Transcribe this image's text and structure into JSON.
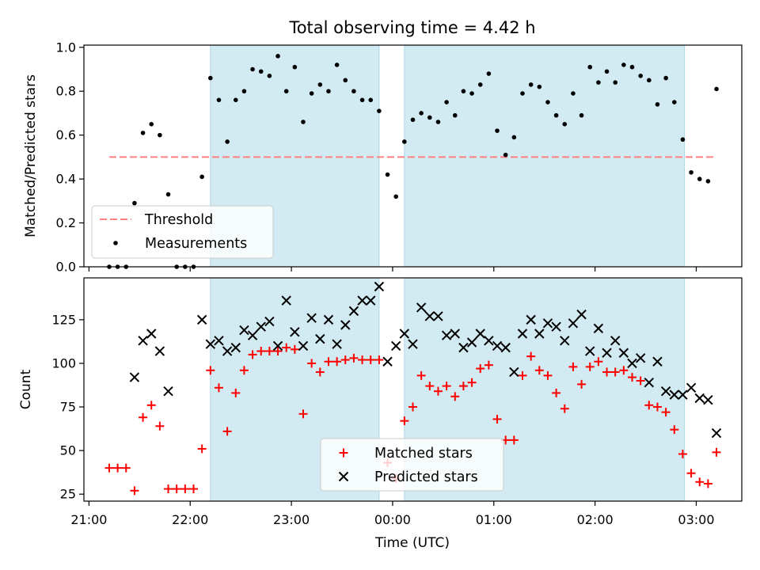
{
  "chart_data": {
    "title": "Total observing time = 4.42 h",
    "xlabel": "Time (UTC)",
    "x_ticks": [
      "21:00",
      "22:00",
      "23:00",
      "00:00",
      "01:00",
      "02:00",
      "03:00"
    ],
    "x_tick_hours": [
      0,
      1,
      2,
      3,
      4,
      5,
      6
    ],
    "x_origin": "21:00",
    "xlim": [
      -0.05,
      6.45
    ],
    "shaded_intervals": [
      [
        "22:12",
        "23:52"
      ],
      [
        "00:07",
        "02:53"
      ]
    ],
    "colors": {
      "shade": "#add8e6",
      "threshold": "#ff8080",
      "measurements": "#000000",
      "matched": "#ff0000",
      "predicted": "#000000"
    },
    "panels": [
      {
        "type": "scatter",
        "ylabel": "Matched/Predicted stars",
        "ylim": [
          0,
          1.01
        ],
        "y_ticks": [
          0.0,
          0.2,
          0.4,
          0.6,
          0.8,
          1.0
        ],
        "y_tick_labels": [
          "0.0",
          "0.2",
          "0.4",
          "0.6",
          "0.8",
          "1.0"
        ],
        "threshold": {
          "name": "Threshold",
          "value": 0.5,
          "x_range": [
            "21:12",
            "03:12"
          ]
        },
        "legend": {
          "placement": "lower-left",
          "entries": [
            "Threshold",
            "Measurements"
          ]
        },
        "series": [
          {
            "name": "Measurements",
            "marker": "dot",
            "points": [
              [
                "21:12",
                0.0
              ],
              [
                "21:17",
                0.0
              ],
              [
                "21:22",
                0.0
              ],
              [
                "21:27",
                0.29
              ],
              [
                "21:32",
                0.61
              ],
              [
                "21:37",
                0.65
              ],
              [
                "21:42",
                0.6
              ],
              [
                "21:47",
                0.33
              ],
              [
                "21:52",
                0.0
              ],
              [
                "21:57",
                0.0
              ],
              [
                "22:02",
                0.0
              ],
              [
                "22:07",
                0.41
              ],
              [
                "22:12",
                0.86
              ],
              [
                "22:17",
                0.76
              ],
              [
                "22:22",
                0.57
              ],
              [
                "22:27",
                0.76
              ],
              [
                "22:32",
                0.8
              ],
              [
                "22:37",
                0.9
              ],
              [
                "22:42",
                0.89
              ],
              [
                "22:47",
                0.87
              ],
              [
                "22:52",
                0.96
              ],
              [
                "22:57",
                0.8
              ],
              [
                "23:02",
                0.91
              ],
              [
                "23:07",
                0.66
              ],
              [
                "23:12",
                0.79
              ],
              [
                "23:17",
                0.83
              ],
              [
                "23:22",
                0.8
              ],
              [
                "23:27",
                0.92
              ],
              [
                "23:32",
                0.85
              ],
              [
                "23:37",
                0.8
              ],
              [
                "23:42",
                0.76
              ],
              [
                "23:47",
                0.76
              ],
              [
                "23:52",
                0.71
              ],
              [
                "23:57",
                0.42
              ],
              [
                "00:02",
                0.32
              ],
              [
                "00:07",
                0.57
              ],
              [
                "00:12",
                0.67
              ],
              [
                "00:17",
                0.7
              ],
              [
                "00:22",
                0.68
              ],
              [
                "00:27",
                0.66
              ],
              [
                "00:32",
                0.75
              ],
              [
                "00:37",
                0.69
              ],
              [
                "00:42",
                0.8
              ],
              [
                "00:47",
                0.79
              ],
              [
                "00:52",
                0.83
              ],
              [
                "00:57",
                0.88
              ],
              [
                "01:02",
                0.62
              ],
              [
                "01:07",
                0.51
              ],
              [
                "01:12",
                0.59
              ],
              [
                "01:17",
                0.79
              ],
              [
                "01:22",
                0.83
              ],
              [
                "01:27",
                0.82
              ],
              [
                "01:32",
                0.75
              ],
              [
                "01:37",
                0.69
              ],
              [
                "01:42",
                0.65
              ],
              [
                "01:47",
                0.79
              ],
              [
                "01:52",
                0.69
              ],
              [
                "01:57",
                0.91
              ],
              [
                "02:02",
                0.84
              ],
              [
                "02:07",
                0.89
              ],
              [
                "02:12",
                0.84
              ],
              [
                "02:17",
                0.92
              ],
              [
                "02:22",
                0.91
              ],
              [
                "02:27",
                0.87
              ],
              [
                "02:32",
                0.85
              ],
              [
                "02:37",
                0.74
              ],
              [
                "02:42",
                0.86
              ],
              [
                "02:47",
                0.75
              ],
              [
                "02:52",
                0.58
              ],
              [
                "02:57",
                0.43
              ],
              [
                "03:02",
                0.4
              ],
              [
                "03:07",
                0.39
              ],
              [
                "03:12",
                0.81
              ]
            ]
          }
        ]
      },
      {
        "type": "scatter",
        "ylabel": "Count",
        "ylim": [
          21,
          149
        ],
        "y_ticks": [
          25,
          50,
          75,
          100,
          125
        ],
        "y_tick_labels": [
          "25",
          "50",
          "75",
          "100",
          "125"
        ],
        "legend": {
          "placement": "lower-center",
          "entries": [
            "Matched stars",
            "Predicted stars"
          ]
        },
        "series": [
          {
            "name": "Matched stars",
            "marker": "plus",
            "points": [
              [
                "21:12",
                40
              ],
              [
                "21:17",
                40
              ],
              [
                "21:22",
                40
              ],
              [
                "21:27",
                27
              ],
              [
                "21:32",
                69
              ],
              [
                "21:37",
                76
              ],
              [
                "21:42",
                64
              ],
              [
                "21:47",
                28
              ],
              [
                "21:52",
                28
              ],
              [
                "21:57",
                28
              ],
              [
                "22:02",
                28
              ],
              [
                "22:07",
                51
              ],
              [
                "22:12",
                96
              ],
              [
                "22:17",
                86
              ],
              [
                "22:22",
                61
              ],
              [
                "22:27",
                83
              ],
              [
                "22:32",
                96
              ],
              [
                "22:37",
                105
              ],
              [
                "22:42",
                107
              ],
              [
                "22:47",
                107
              ],
              [
                "22:52",
                107
              ],
              [
                "22:57",
                109
              ],
              [
                "23:02",
                108
              ],
              [
                "23:07",
                71
              ],
              [
                "23:12",
                100
              ],
              [
                "23:17",
                95
              ],
              [
                "23:22",
                101
              ],
              [
                "23:27",
                101
              ],
              [
                "23:32",
                102
              ],
              [
                "23:37",
                103
              ],
              [
                "23:42",
                102
              ],
              [
                "23:47",
                102
              ],
              [
                "23:52",
                102
              ],
              [
                "23:57",
                43
              ],
              [
                "00:02",
                34
              ],
              [
                "00:07",
                67
              ],
              [
                "00:12",
                75
              ],
              [
                "00:17",
                93
              ],
              [
                "00:22",
                87
              ],
              [
                "00:27",
                84
              ],
              [
                "00:32",
                87
              ],
              [
                "00:37",
                81
              ],
              [
                "00:42",
                87
              ],
              [
                "00:47",
                89
              ],
              [
                "00:52",
                97
              ],
              [
                "00:57",
                99
              ],
              [
                "01:02",
                68
              ],
              [
                "01:07",
                56
              ],
              [
                "01:12",
                56
              ],
              [
                "01:17",
                93
              ],
              [
                "01:22",
                104
              ],
              [
                "01:27",
                96
              ],
              [
                "01:32",
                93
              ],
              [
                "01:37",
                83
              ],
              [
                "01:42",
                74
              ],
              [
                "01:47",
                98
              ],
              [
                "01:52",
                88
              ],
              [
                "01:57",
                98
              ],
              [
                "02:02",
                101
              ],
              [
                "02:07",
                95
              ],
              [
                "02:12",
                95
              ],
              [
                "02:17",
                96
              ],
              [
                "02:22",
                92
              ],
              [
                "02:27",
                90
              ],
              [
                "02:32",
                76
              ],
              [
                "02:37",
                75
              ],
              [
                "02:42",
                72
              ],
              [
                "02:47",
                62
              ],
              [
                "02:52",
                48
              ],
              [
                "02:57",
                37
              ],
              [
                "03:02",
                32
              ],
              [
                "03:07",
                31
              ],
              [
                "03:12",
                49
              ]
            ]
          },
          {
            "name": "Predicted stars",
            "marker": "x",
            "points": [
              [
                "21:27",
                92
              ],
              [
                "21:32",
                113
              ],
              [
                "21:37",
                117
              ],
              [
                "21:42",
                107
              ],
              [
                "21:47",
                84
              ],
              [
                "22:07",
                125
              ],
              [
                "22:12",
                111
              ],
              [
                "22:17",
                113
              ],
              [
                "22:22",
                107
              ],
              [
                "22:27",
                109
              ],
              [
                "22:32",
                119
              ],
              [
                "22:37",
                116
              ],
              [
                "22:42",
                121
              ],
              [
                "22:47",
                124
              ],
              [
                "22:52",
                110
              ],
              [
                "22:57",
                136
              ],
              [
                "23:02",
                118
              ],
              [
                "23:07",
                110
              ],
              [
                "23:12",
                126
              ],
              [
                "23:17",
                114
              ],
              [
                "23:22",
                125
              ],
              [
                "23:27",
                111
              ],
              [
                "23:32",
                122
              ],
              [
                "23:37",
                130
              ],
              [
                "23:42",
                136
              ],
              [
                "23:47",
                136
              ],
              [
                "23:52",
                144
              ],
              [
                "23:57",
                101
              ],
              [
                "00:02",
                110
              ],
              [
                "00:07",
                117
              ],
              [
                "00:12",
                111
              ],
              [
                "00:17",
                132
              ],
              [
                "00:22",
                127
              ],
              [
                "00:27",
                127
              ],
              [
                "00:32",
                116
              ],
              [
                "00:37",
                117
              ],
              [
                "00:42",
                109
              ],
              [
                "00:47",
                112
              ],
              [
                "00:52",
                117
              ],
              [
                "00:57",
                113
              ],
              [
                "01:02",
                110
              ],
              [
                "01:07",
                109
              ],
              [
                "01:12",
                95
              ],
              [
                "01:17",
                117
              ],
              [
                "01:22",
                125
              ],
              [
                "01:27",
                117
              ],
              [
                "01:32",
                123
              ],
              [
                "01:37",
                121
              ],
              [
                "01:42",
                113
              ],
              [
                "01:47",
                123
              ],
              [
                "01:52",
                128
              ],
              [
                "01:57",
                107
              ],
              [
                "02:02",
                120
              ],
              [
                "02:07",
                106
              ],
              [
                "02:12",
                113
              ],
              [
                "02:17",
                106
              ],
              [
                "02:22",
                100
              ],
              [
                "02:27",
                103
              ],
              [
                "02:32",
                89
              ],
              [
                "02:37",
                101
              ],
              [
                "02:42",
                84
              ],
              [
                "02:47",
                82
              ],
              [
                "02:52",
                82
              ],
              [
                "02:57",
                86
              ],
              [
                "03:02",
                80
              ],
              [
                "03:07",
                79
              ],
              [
                "03:12",
                60
              ]
            ]
          }
        ]
      }
    ]
  }
}
